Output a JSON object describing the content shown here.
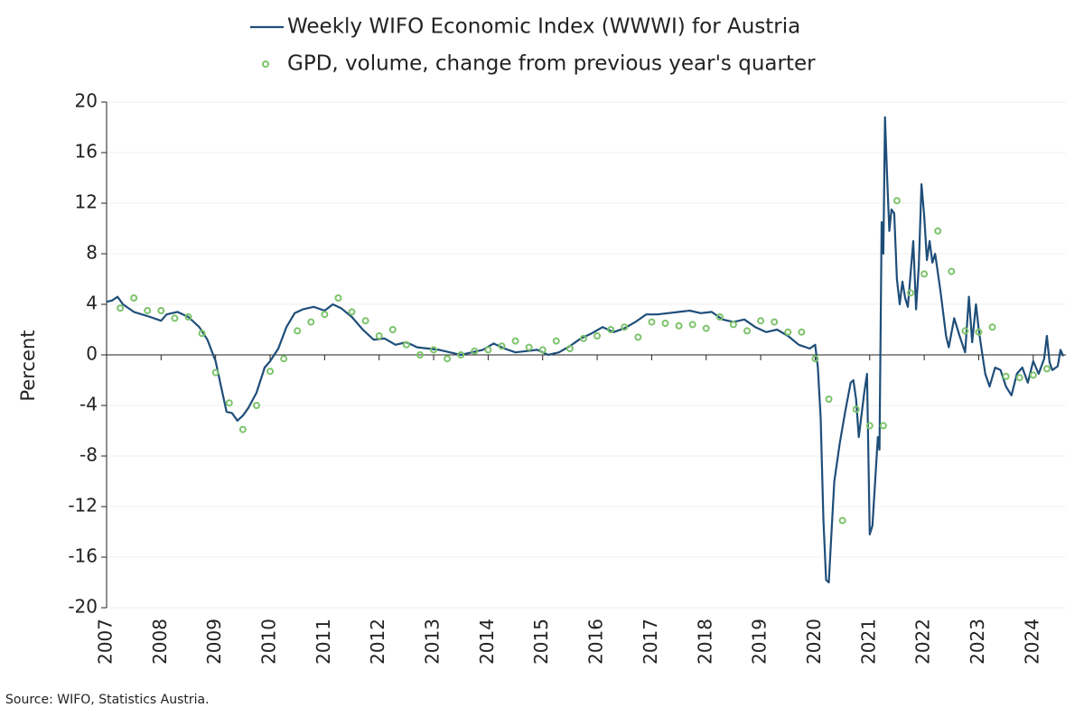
{
  "chart_data": {
    "type": "line",
    "legend": "top",
    "ylabel": "Percent",
    "source": "Source: WIFO, Statistics Austria.",
    "xlim": [
      2007,
      2024.6
    ],
    "xticks": [
      2007,
      2008,
      2009,
      2010,
      2011,
      2012,
      2013,
      2014,
      2015,
      2016,
      2017,
      2018,
      2019,
      2020,
      2021,
      2022,
      2023,
      2024
    ],
    "ylim": [
      -20,
      20
    ],
    "yticks": [
      20,
      16,
      12,
      8,
      4,
      0,
      -4,
      -8,
      -12,
      -16,
      -20
    ],
    "grid": true,
    "series": [
      {
        "name": "Weekly WIFO Economic Index (WWWI) for Austria",
        "color": "#1f4e79",
        "style": "line",
        "x": [
          2007.0,
          2007.1,
          2007.2,
          2007.3,
          2007.5,
          2007.8,
          2008.0,
          2008.1,
          2008.3,
          2008.5,
          2008.7,
          2008.85,
          2009.0,
          2009.1,
          2009.2,
          2009.3,
          2009.4,
          2009.5,
          2009.6,
          2009.75,
          2009.9,
          2010.0,
          2010.15,
          2010.3,
          2010.45,
          2010.6,
          2010.8,
          2011.0,
          2011.15,
          2011.3,
          2011.5,
          2011.7,
          2011.9,
          2012.1,
          2012.3,
          2012.5,
          2012.7,
          2012.9,
          2013.1,
          2013.3,
          2013.5,
          2013.7,
          2013.9,
          2014.1,
          2014.3,
          2014.5,
          2014.7,
          2014.9,
          2015.1,
          2015.3,
          2015.5,
          2015.7,
          2015.9,
          2016.1,
          2016.3,
          2016.5,
          2016.7,
          2016.9,
          2017.1,
          2017.3,
          2017.5,
          2017.7,
          2017.9,
          2018.1,
          2018.3,
          2018.5,
          2018.7,
          2018.9,
          2019.1,
          2019.3,
          2019.5,
          2019.7,
          2019.9,
          2020.0,
          2020.05,
          2020.1,
          2020.15,
          2020.2,
          2020.25,
          2020.3,
          2020.35,
          2020.45,
          2020.55,
          2020.65,
          2020.7,
          2020.75,
          2020.8,
          2020.9,
          2020.95,
          2021.0,
          2021.05,
          2021.1,
          2021.15,
          2021.18,
          2021.22,
          2021.25,
          2021.28,
          2021.32,
          2021.36,
          2021.4,
          2021.45,
          2021.5,
          2021.55,
          2021.6,
          2021.65,
          2021.7,
          2021.8,
          2021.85,
          2021.9,
          2021.95,
          2022.0,
          2022.05,
          2022.1,
          2022.15,
          2022.2,
          2022.3,
          2022.4,
          2022.45,
          2022.55,
          2022.65,
          2022.75,
          2022.82,
          2022.88,
          2022.95,
          2023.0,
          2023.05,
          2023.12,
          2023.2,
          2023.3,
          2023.4,
          2023.5,
          2023.6,
          2023.7,
          2023.8,
          2023.9,
          2024.0,
          2024.1,
          2024.2,
          2024.25,
          2024.3,
          2024.35,
          2024.45,
          2024.5,
          2024.55
        ],
        "values": [
          4.2,
          4.3,
          4.6,
          4.0,
          3.4,
          3.0,
          2.7,
          3.2,
          3.4,
          3.0,
          2.2,
          1.2,
          -0.5,
          -2.5,
          -4.5,
          -4.6,
          -5.2,
          -4.8,
          -4.2,
          -3.0,
          -1.0,
          -0.5,
          0.5,
          2.2,
          3.3,
          3.6,
          3.8,
          3.5,
          4.0,
          3.7,
          3.0,
          2.0,
          1.2,
          1.3,
          0.8,
          1.0,
          0.6,
          0.5,
          0.4,
          0.2,
          0.0,
          0.2,
          0.4,
          0.9,
          0.5,
          0.2,
          0.3,
          0.4,
          0.0,
          0.2,
          0.7,
          1.3,
          1.7,
          2.2,
          1.8,
          2.1,
          2.6,
          3.2,
          3.2,
          3.3,
          3.4,
          3.5,
          3.3,
          3.4,
          2.8,
          2.6,
          2.8,
          2.2,
          1.8,
          2.0,
          1.5,
          0.8,
          0.5,
          0.8,
          -1.0,
          -5,
          -13,
          -17.8,
          -18.0,
          -14,
          -10,
          -7,
          -4.5,
          -2.2,
          -2.0,
          -3.5,
          -6.5,
          -3.0,
          -1.5,
          -14.2,
          -13.5,
          -10,
          -6.5,
          -7.5,
          10.5,
          8,
          18.8,
          14,
          9.8,
          11.5,
          11.2,
          6,
          4.0,
          5.8,
          4.5,
          3.8,
          9,
          3.6,
          7,
          13.5,
          11,
          7.5,
          9,
          7.3,
          8,
          5,
          1.5,
          0.6,
          2.9,
          1.5,
          0.2,
          4.6,
          1.0,
          4.0,
          2.0,
          0.5,
          -1.5,
          -2.5,
          -1.0,
          -1.2,
          -2.5,
          -3.2,
          -1.5,
          -1.0,
          -2.2,
          -0.5,
          -1.5,
          -0.3,
          1.5,
          -0.6,
          -1.2,
          -0.9,
          0.4,
          -0.1
        ]
      },
      {
        "name": "GPD, volume, change from previous year's quarter",
        "color": "#7cc36b",
        "style": "points",
        "x": [
          2007.25,
          2007.5,
          2007.75,
          2008.0,
          2008.25,
          2008.5,
          2008.75,
          2009.0,
          2009.25,
          2009.5,
          2009.75,
          2010.0,
          2010.25,
          2010.5,
          2010.75,
          2011.0,
          2011.25,
          2011.5,
          2011.75,
          2012.0,
          2012.25,
          2012.5,
          2012.75,
          2013.0,
          2013.25,
          2013.5,
          2013.75,
          2014.0,
          2014.25,
          2014.5,
          2014.75,
          2015.0,
          2015.25,
          2015.5,
          2015.75,
          2016.0,
          2016.25,
          2016.5,
          2016.75,
          2017.0,
          2017.25,
          2017.5,
          2017.75,
          2018.0,
          2018.25,
          2018.5,
          2018.75,
          2019.0,
          2019.25,
          2019.5,
          2019.75,
          2020.0,
          2020.25,
          2020.5,
          2020.75,
          2021.0,
          2021.25,
          2021.5,
          2021.75,
          2022.0,
          2022.25,
          2022.5,
          2022.75,
          2023.0,
          2023.25,
          2023.5,
          2023.75,
          2024.0,
          2024.25
        ],
        "values": [
          3.7,
          4.5,
          3.5,
          3.5,
          2.9,
          3.0,
          1.7,
          -1.4,
          -3.8,
          -5.9,
          -4.0,
          -1.3,
          -0.3,
          1.9,
          2.6,
          3.2,
          4.5,
          3.4,
          2.7,
          1.5,
          2.0,
          0.8,
          0.0,
          0.4,
          -0.3,
          0.0,
          0.3,
          0.4,
          0.7,
          1.1,
          0.6,
          0.4,
          1.1,
          0.5,
          1.3,
          1.5,
          2.0,
          2.2,
          1.4,
          2.6,
          2.5,
          2.3,
          2.4,
          2.1,
          3.0,
          2.4,
          1.9,
          2.7,
          2.6,
          1.8,
          1.8,
          -0.3,
          -3.5,
          -13.1,
          -4.3,
          -5.6,
          -5.6,
          12.2,
          4.9,
          6.4,
          9.8,
          6.6,
          1.9,
          1.8,
          2.2,
          -1.7,
          -1.8,
          -1.6,
          -1.1
        ]
      }
    ]
  }
}
